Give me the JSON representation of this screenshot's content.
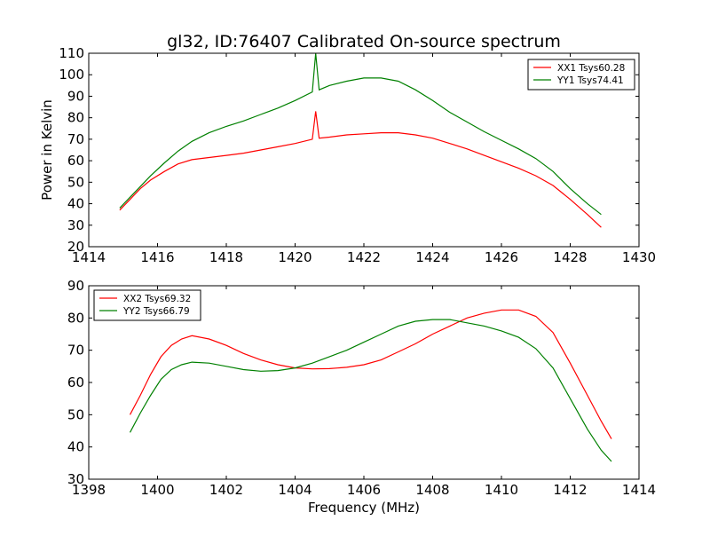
{
  "chart_data": [
    {
      "type": "line",
      "title": "gl32, ID:76407 Calibrated On-source spectrum",
      "xlabel": "",
      "ylabel": "Power in Kelvin",
      "xlim": [
        1414,
        1430
      ],
      "ylim": [
        20,
        110
      ],
      "xticks": [
        "1414",
        "1416",
        "1418",
        "1420",
        "1422",
        "1424",
        "1426",
        "1428",
        "1430"
      ],
      "yticks": [
        "20",
        "30",
        "40",
        "50",
        "60",
        "70",
        "80",
        "90",
        "100",
        "110"
      ],
      "legend": "top-right",
      "series": [
        {
          "name": "XX1 Tsys60.28",
          "color": "#ff0000",
          "x": [
            1414.9,
            1415.2,
            1415.5,
            1415.8,
            1416.2,
            1416.6,
            1417.0,
            1417.5,
            1418.0,
            1418.5,
            1419.0,
            1419.5,
            1420.0,
            1420.5,
            1420.6,
            1420.7,
            1421.0,
            1421.5,
            1422.0,
            1422.5,
            1423.0,
            1423.5,
            1424.0,
            1424.5,
            1425.0,
            1425.5,
            1426.0,
            1426.5,
            1427.0,
            1427.5,
            1428.0,
            1428.5,
            1428.9
          ],
          "y": [
            37,
            42,
            47,
            51,
            55,
            58.5,
            60.5,
            61.5,
            62.5,
            63.5,
            65,
            66.5,
            68,
            70,
            83,
            70.5,
            71,
            72,
            72.5,
            73,
            73,
            72,
            70.5,
            68,
            65.5,
            62.5,
            59.5,
            56.5,
            53,
            48.5,
            42,
            35,
            29
          ]
        },
        {
          "name": "YY1 Tsys74.41",
          "color": "#008000",
          "x": [
            1414.9,
            1415.2,
            1415.5,
            1415.8,
            1416.2,
            1416.6,
            1417.0,
            1417.5,
            1418.0,
            1418.5,
            1419.0,
            1419.5,
            1420.0,
            1420.5,
            1420.6,
            1420.7,
            1421.0,
            1421.5,
            1422.0,
            1422.5,
            1423.0,
            1423.5,
            1424.0,
            1424.5,
            1425.0,
            1425.5,
            1426.0,
            1426.5,
            1427.0,
            1427.5,
            1428.0,
            1428.5,
            1428.9
          ],
          "y": [
            38,
            43,
            48,
            53,
            59,
            64.5,
            69,
            73,
            76,
            78.5,
            81.5,
            84.5,
            88,
            92,
            110,
            93,
            95,
            97,
            98.5,
            98.5,
            97,
            93,
            88,
            82.5,
            78,
            73.5,
            69.5,
            65.5,
            61,
            55,
            47,
            40,
            35
          ]
        }
      ]
    },
    {
      "type": "line",
      "title": "",
      "xlabel": "Frequency (MHz)",
      "ylabel": "",
      "xlim": [
        1398,
        1414
      ],
      "ylim": [
        30,
        90
      ],
      "xticks": [
        "1398",
        "1400",
        "1402",
        "1404",
        "1406",
        "1408",
        "1410",
        "1412",
        "1414"
      ],
      "yticks": [
        "30",
        "40",
        "50",
        "60",
        "70",
        "80",
        "90"
      ],
      "legend": "top-left",
      "series": [
        {
          "name": "XX2 Tsys69.32",
          "color": "#ff0000",
          "x": [
            1399.2,
            1399.5,
            1399.8,
            1400.1,
            1400.4,
            1400.7,
            1401.0,
            1401.5,
            1402.0,
            1402.5,
            1403.0,
            1403.5,
            1404.0,
            1404.5,
            1405.0,
            1405.5,
            1406.0,
            1406.5,
            1407.0,
            1407.5,
            1408.0,
            1408.5,
            1409.0,
            1409.5,
            1410.0,
            1410.5,
            1411.0,
            1411.5,
            1412.0,
            1412.5,
            1412.9,
            1413.2
          ],
          "y": [
            50,
            56,
            62.5,
            68,
            71.5,
            73.5,
            74.5,
            73.5,
            71.5,
            69,
            67,
            65.5,
            64.5,
            64.2,
            64.3,
            64.7,
            65.5,
            67,
            69.5,
            72,
            75,
            77.5,
            80,
            81.5,
            82.5,
            82.5,
            80.5,
            75.5,
            66,
            56,
            48,
            42.5
          ]
        },
        {
          "name": "YY2 Tsys66.79",
          "color": "#008000",
          "x": [
            1399.2,
            1399.5,
            1399.8,
            1400.1,
            1400.4,
            1400.7,
            1401.0,
            1401.5,
            1402.0,
            1402.5,
            1403.0,
            1403.5,
            1404.0,
            1404.5,
            1405.0,
            1405.5,
            1406.0,
            1406.5,
            1407.0,
            1407.5,
            1408.0,
            1408.5,
            1409.0,
            1409.5,
            1410.0,
            1410.5,
            1411.0,
            1411.5,
            1412.0,
            1412.5,
            1412.9,
            1413.2
          ],
          "y": [
            44.5,
            50.5,
            56,
            61,
            64,
            65.5,
            66.3,
            66,
            65,
            64,
            63.5,
            63.7,
            64.5,
            66,
            68,
            70,
            72.5,
            75,
            77.5,
            79,
            79.5,
            79.5,
            78.5,
            77.5,
            76,
            74,
            70.5,
            64.5,
            55,
            45.5,
            39,
            35.5
          ]
        }
      ]
    }
  ]
}
